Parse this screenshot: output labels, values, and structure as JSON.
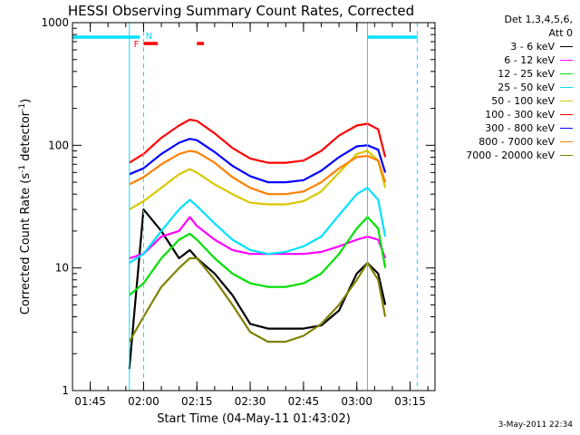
{
  "chart_data": {
    "type": "line",
    "title": "HESSI Observing Summary Count Rates, Corrected",
    "xlabel": "Start Time (04-May-11 01:43:02)",
    "ylabel": "Corrected Count Rate (s⁻¹ detector⁻¹)",
    "ylabel_main": "Corrected Count Rate (s",
    "ylabel_sup1": "-1",
    "ylabel_mid": " detector",
    "ylabel_sup2": "-1",
    "ylabel_end": ")",
    "yscale": "log",
    "ylim": [
      1,
      1000
    ],
    "xlim": [
      "01:40",
      "03:22"
    ],
    "xticks": [
      "01:45",
      "02:00",
      "02:15",
      "02:30",
      "02:45",
      "03:00",
      "03:15"
    ],
    "yticks": [
      "1",
      "10",
      "100",
      "1000"
    ],
    "legend_header": [
      "Det 1,3,4,5,6,",
      "Att 0"
    ],
    "legend_placement": "right",
    "series": [
      {
        "name": "3 - 6 keV",
        "color": "#000000",
        "x": [
          "01:56",
          "02:00",
          "02:05",
          "02:10",
          "02:13",
          "02:15",
          "02:20",
          "02:25",
          "02:30",
          "02:35",
          "02:40",
          "02:45",
          "02:50",
          "02:55",
          "03:00",
          "03:03",
          "03:06",
          "03:08"
        ],
        "y": [
          1.5,
          30,
          20,
          12,
          14,
          12,
          9,
          6,
          3.5,
          3.2,
          3.2,
          3.2,
          3.4,
          4.5,
          9,
          11,
          9,
          5
        ]
      },
      {
        "name": "6 - 12 keV",
        "color": "#ff00ff",
        "x": [
          "01:56",
          "02:00",
          "02:05",
          "02:10",
          "02:13",
          "02:15",
          "02:20",
          "02:25",
          "02:30",
          "02:35",
          "02:40",
          "02:45",
          "02:50",
          "02:55",
          "03:00",
          "03:03",
          "03:06",
          "03:08"
        ],
        "y": [
          12,
          13,
          18,
          20,
          26,
          22,
          17,
          14,
          13,
          13,
          13,
          13,
          13.5,
          15,
          17,
          18,
          17,
          12
        ]
      },
      {
        "name": "12 - 25 keV",
        "color": "#00e000",
        "x": [
          "01:56",
          "02:00",
          "02:05",
          "02:10",
          "02:13",
          "02:15",
          "02:20",
          "02:25",
          "02:30",
          "02:35",
          "02:40",
          "02:45",
          "02:50",
          "02:55",
          "03:00",
          "03:03",
          "03:06",
          "03:08"
        ],
        "y": [
          6,
          7.5,
          12,
          17,
          19,
          17,
          12,
          9,
          7.5,
          7,
          7,
          7.5,
          9,
          13,
          21,
          26,
          21,
          10
        ]
      },
      {
        "name": "25 - 50 keV",
        "color": "#00e0ff",
        "x": [
          "01:56",
          "02:00",
          "02:05",
          "02:10",
          "02:13",
          "02:15",
          "02:20",
          "02:25",
          "02:30",
          "02:35",
          "02:40",
          "02:45",
          "02:50",
          "02:55",
          "03:00",
          "03:03",
          "03:06",
          "03:08"
        ],
        "y": [
          11,
          13,
          20,
          30,
          36,
          32,
          23,
          17,
          14,
          13,
          13.5,
          15,
          18,
          27,
          40,
          45,
          36,
          18
        ]
      },
      {
        "name": "50 - 100 keV",
        "color": "#d8c800",
        "x": [
          "01:56",
          "02:00",
          "02:05",
          "02:10",
          "02:13",
          "02:15",
          "02:20",
          "02:25",
          "02:30",
          "02:35",
          "02:40",
          "02:45",
          "02:50",
          "02:55",
          "03:00",
          "03:03",
          "03:06",
          "03:08"
        ],
        "y": [
          30,
          35,
          45,
          58,
          64,
          60,
          48,
          40,
          34,
          33,
          33,
          35,
          42,
          60,
          85,
          90,
          75,
          45
        ]
      },
      {
        "name": "100 - 300 keV",
        "color": "#ff0000",
        "x": [
          "01:56",
          "02:00",
          "02:05",
          "02:10",
          "02:13",
          "02:15",
          "02:20",
          "02:25",
          "02:30",
          "02:35",
          "02:40",
          "02:45",
          "02:50",
          "02:55",
          "03:00",
          "03:03",
          "03:06",
          "03:08"
        ],
        "y": [
          72,
          85,
          115,
          145,
          162,
          158,
          125,
          95,
          78,
          72,
          72,
          75,
          90,
          120,
          145,
          150,
          135,
          80
        ]
      },
      {
        "name": "300 - 800 keV",
        "color": "#0000ff",
        "x": [
          "01:56",
          "02:00",
          "02:05",
          "02:10",
          "02:13",
          "02:15",
          "02:20",
          "02:25",
          "02:30",
          "02:35",
          "02:40",
          "02:45",
          "02:50",
          "02:55",
          "03:00",
          "03:03",
          "03:06",
          "03:08"
        ],
        "y": [
          58,
          65,
          85,
          105,
          113,
          110,
          88,
          68,
          56,
          50,
          50,
          52,
          62,
          80,
          98,
          100,
          92,
          60
        ]
      },
      {
        "name": "800 - 7000 keV",
        "color": "#ff8000",
        "x": [
          "01:56",
          "02:00",
          "02:05",
          "02:10",
          "02:13",
          "02:15",
          "02:20",
          "02:25",
          "02:30",
          "02:35",
          "02:40",
          "02:45",
          "02:50",
          "02:55",
          "03:00",
          "03:03",
          "03:06",
          "03:08"
        ],
        "y": [
          48,
          55,
          70,
          85,
          90,
          88,
          72,
          55,
          45,
          40,
          40,
          42,
          50,
          65,
          80,
          82,
          75,
          50
        ]
      },
      {
        "name": "7000 - 20000 keV",
        "color": "#808000",
        "x": [
          "01:56",
          "02:00",
          "02:05",
          "02:10",
          "02:13",
          "02:15",
          "02:20",
          "02:25",
          "02:30",
          "02:35",
          "02:40",
          "02:45",
          "02:50",
          "02:55",
          "03:00",
          "03:03",
          "03:06",
          "03:08"
        ],
        "y": [
          2.5,
          4,
          7,
          10,
          12,
          12,
          8,
          5,
          3,
          2.5,
          2.5,
          2.8,
          3.5,
          5,
          8,
          11,
          8,
          4
        ]
      }
    ],
    "annotations": {
      "flag_labels": [
        {
          "text": "F",
          "time": "01:59",
          "color": "#ff0000"
        },
        {
          "text": "N",
          "time": "02:00",
          "color": "#00e0ff"
        }
      ],
      "saa_spans": [
        [
          "01:40",
          "01:59"
        ],
        [
          "03:03",
          "03:17"
        ]
      ],
      "saa_color": "#00e0ff",
      "flare_bars": [
        [
          "02:00",
          "02:04"
        ],
        [
          "02:15",
          "02:17"
        ]
      ],
      "flare_color": "#ff0000",
      "night_solid": [
        "01:56",
        "03:03"
      ],
      "night_dashed": [
        "02:00",
        "03:17"
      ]
    }
  },
  "timestamp": "3-May-2011 22:34"
}
